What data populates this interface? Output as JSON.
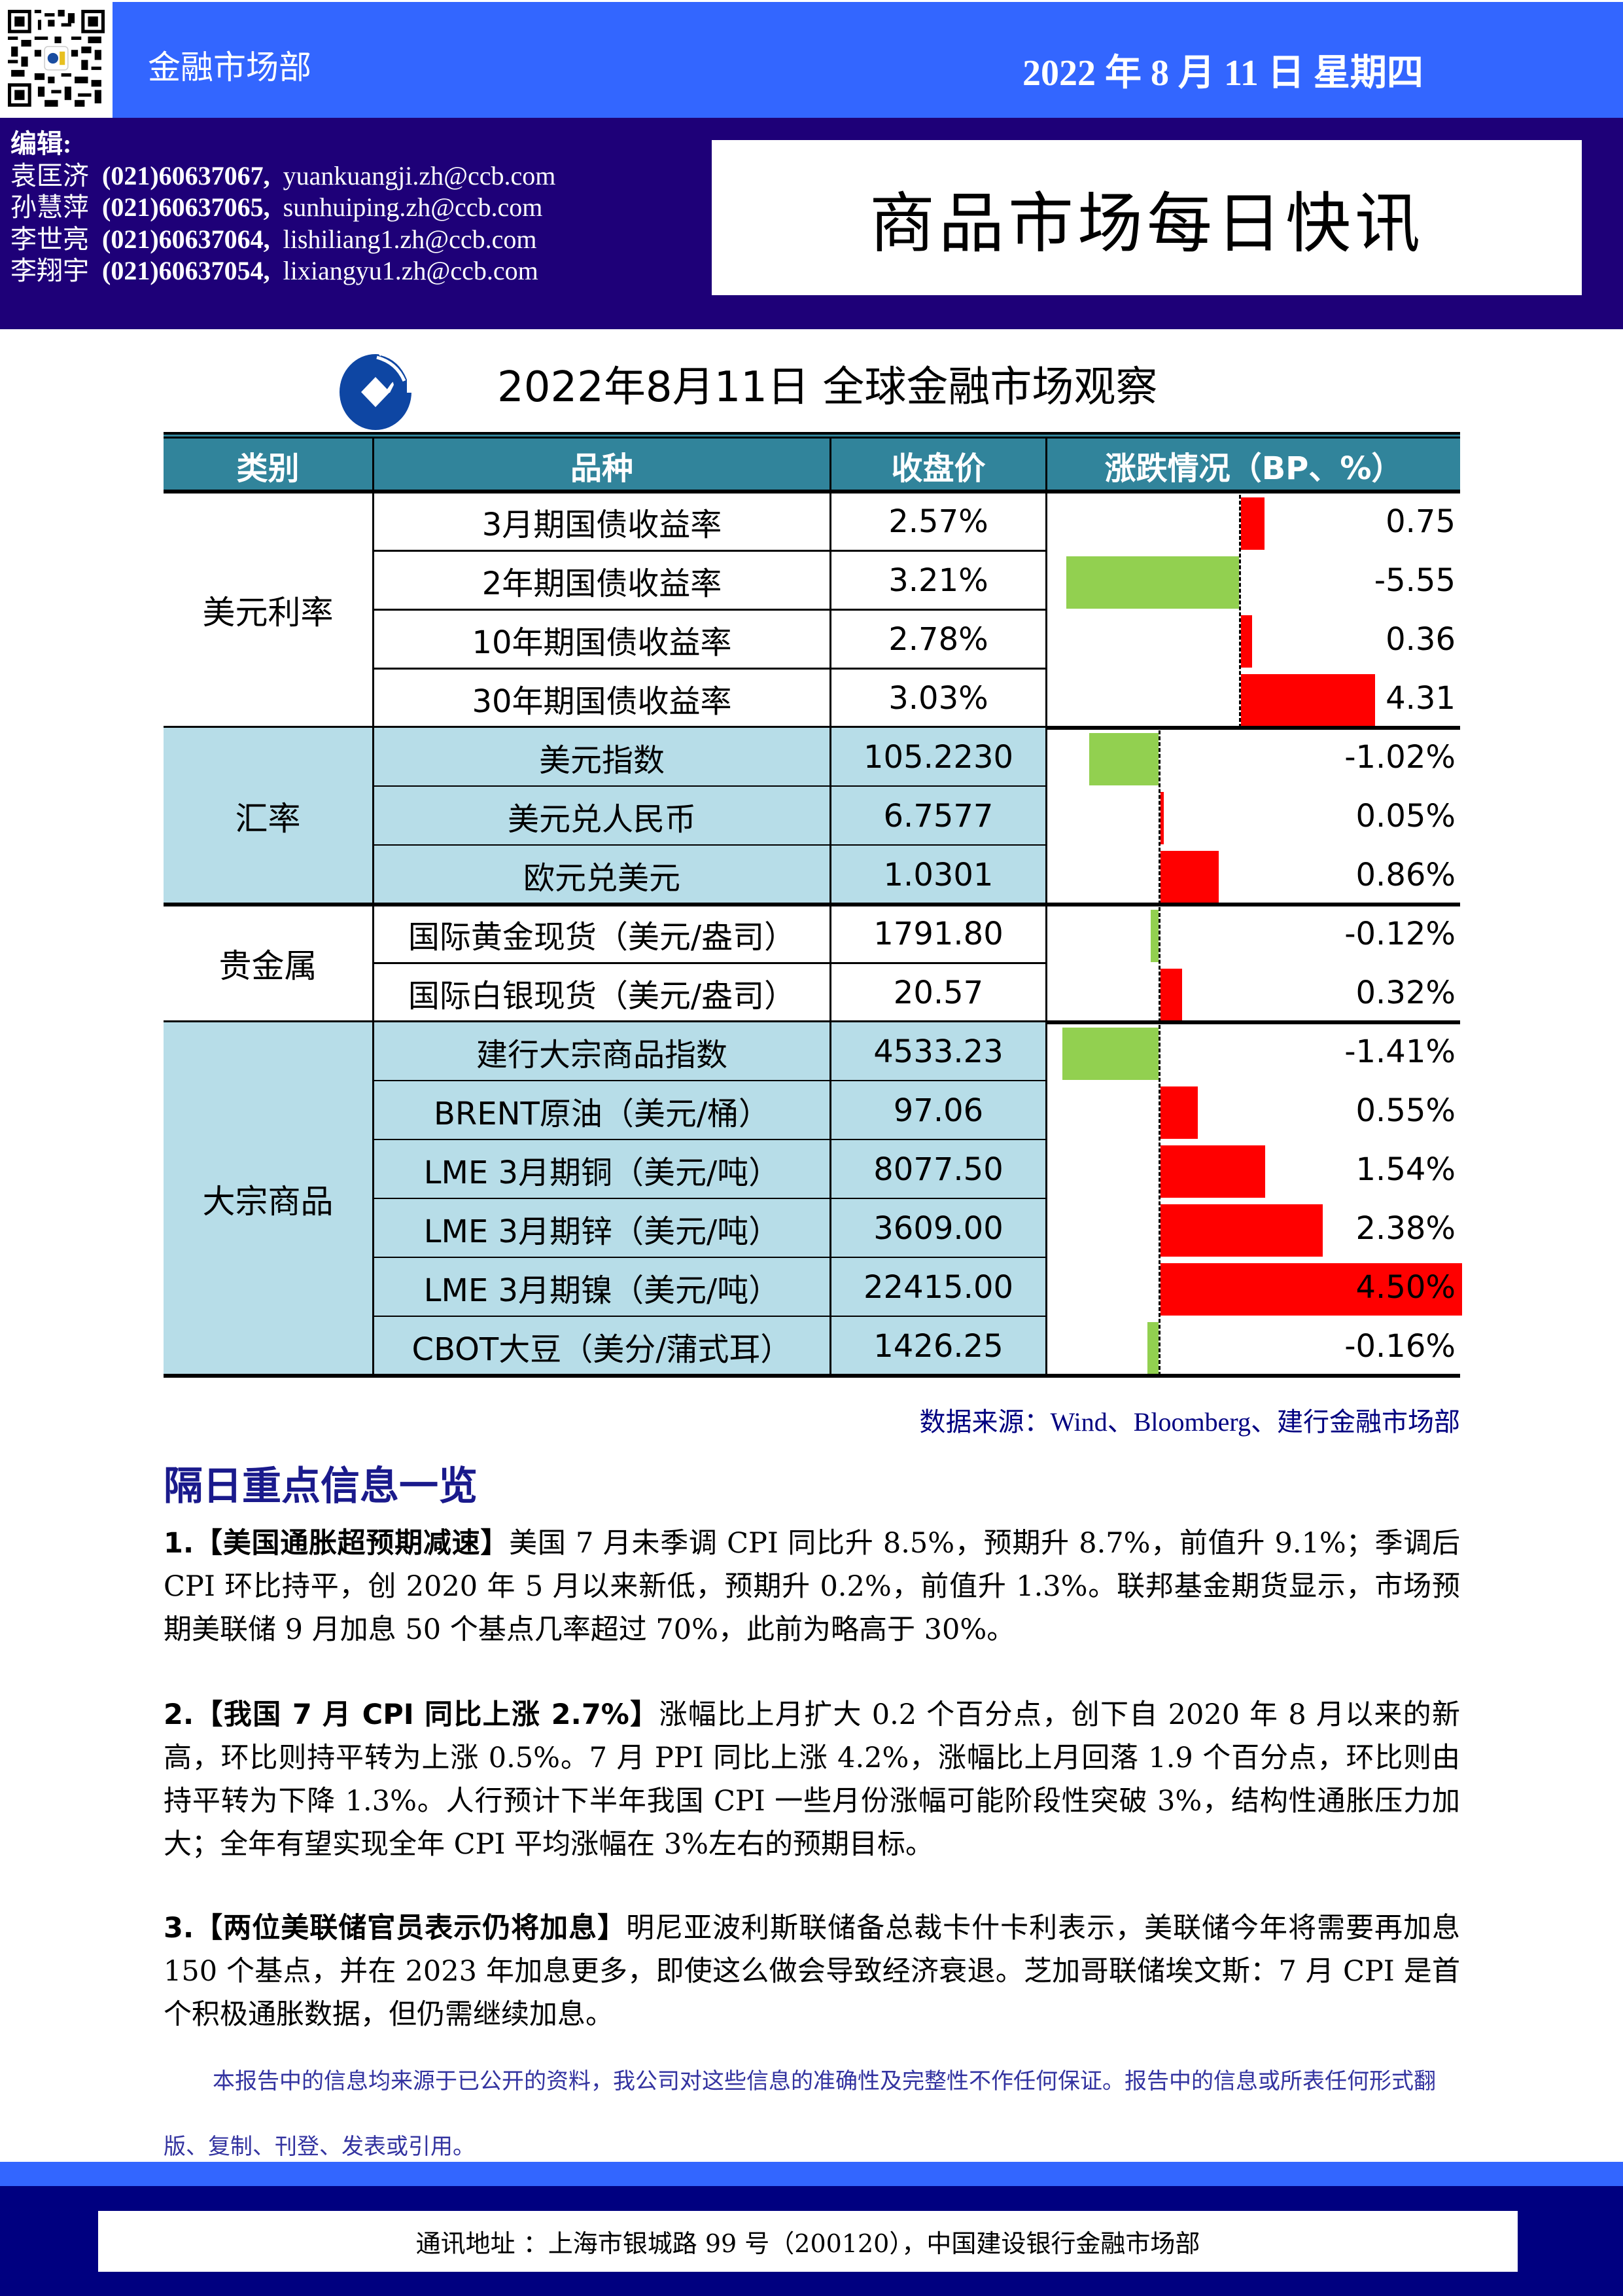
{
  "header": {
    "department": "金融市场部",
    "date": "2022 年 8 月 11 日  星期四",
    "editors_label": "编辑:",
    "editors": [
      {
        "name": "袁匡济",
        "phone": "(021)60637067,",
        "email": "yuankuangji.zh@ccb.com"
      },
      {
        "name": "孙慧萍",
        "phone": "(021)60637065,",
        "email": "sunhuiping.zh@ccb.com"
      },
      {
        "name": "李世亮",
        "phone": "(021)60637064,",
        "email": "lishiliang1.zh@ccb.com"
      },
      {
        "name": "李翔宇",
        "phone": "(021)60637054,",
        "email": "lixiangyu1.zh@ccb.com"
      }
    ],
    "report_title": "商品市场每日快讯",
    "qr_icon": "qr-code-icon"
  },
  "table": {
    "logo_icon": "ccb-logo-icon",
    "title": "2022年8月11日 全球金融市场观察",
    "columns": [
      "类别",
      "品种",
      "收盘价",
      "涨跌情况（BP、%）"
    ],
    "colors": {
      "header": "#31849B",
      "shaded_row": "#B7DDE8",
      "up": "#FF0000",
      "down": "#92D050"
    },
    "categories": [
      {
        "name": "美元利率",
        "shaded": false,
        "unit": "BP",
        "rows": [
          {
            "item": "3月期国债收益率",
            "close": "2.57%",
            "change": "0.75",
            "value": 0.75
          },
          {
            "item": "2年期国债收益率",
            "close": "3.21%",
            "change": "-5.55",
            "value": -5.55
          },
          {
            "item": "10年期国债收益率",
            "close": "2.78%",
            "change": "0.36",
            "value": 0.36
          },
          {
            "item": "30年期国债收益率",
            "close": "3.03%",
            "change": "4.31",
            "value": 4.31
          }
        ]
      },
      {
        "name": "汇率",
        "shaded": true,
        "unit": "%",
        "rows": [
          {
            "item": "美元指数",
            "close": "105.2230",
            "change": "-1.02%",
            "value": -1.02
          },
          {
            "item": "美元兑人民币",
            "close": "6.7577",
            "change": "0.05%",
            "value": 0.05
          },
          {
            "item": "欧元兑美元",
            "close": "1.0301",
            "change": "0.86%",
            "value": 0.86
          }
        ]
      },
      {
        "name": "贵金属",
        "shaded": false,
        "unit": "%",
        "rows": [
          {
            "item": "国际黄金现货（美元/盎司）",
            "close": "1791.80",
            "change": "-0.12%",
            "value": -0.12
          },
          {
            "item": "国际白银现货（美元/盎司）",
            "close": "20.57",
            "change": "0.32%",
            "value": 0.32
          }
        ]
      },
      {
        "name": "大宗商品",
        "shaded": true,
        "unit": "%",
        "rows": [
          {
            "item": "建行大宗商品指数",
            "close": "4533.23",
            "change": "-1.41%",
            "value": -1.41
          },
          {
            "item": "BRENT原油（美元/桶）",
            "close": "97.06",
            "change": "0.55%",
            "value": 0.55
          },
          {
            "item": "LME 3月期铜（美元/吨）",
            "close": "8077.50",
            "change": "1.54%",
            "value": 1.54
          },
          {
            "item": "LME 3月期锌（美元/吨）",
            "close": "3609.00",
            "change": "2.38%",
            "value": 2.38
          },
          {
            "item": "LME 3月期镍（美元/吨）",
            "close": "22415.00",
            "change": "4.50%",
            "value": 4.5
          },
          {
            "item": "CBOT大豆（美分/蒲式耳）",
            "close": "1426.25",
            "change": "-0.16%",
            "value": -0.16
          }
        ]
      }
    ],
    "source": "数据来源：Wind、Bloomberg、建行金融市场部"
  },
  "news": {
    "heading": "隔日重点信息一览",
    "items": [
      {
        "num": "1.",
        "headline": "【美国通胀超预期减速】",
        "body": "美国 7 月未季调 CPI 同比升 8.5%，预期升 8.7%，前值升 9.1%；季调后 CPI 环比持平，创 2020 年 5 月以来新低，预期升 0.2%，前值升 1.3%。联邦基金期货显示，市场预期美联储 9 月加息 50 个基点几率超过 70%，此前为略高于 30%。"
      },
      {
        "num": "2.",
        "headline": "【我国 7 月 CPI 同比上涨 2.7%】",
        "body": "涨幅比上月扩大 0.2 个百分点，创下自 2020 年 8 月以来的新高，环比则持平转为上涨 0.5%。7 月 PPI 同比上涨 4.2%，涨幅比上月回落 1.9 个百分点，环比则由持平转为下降 1.3%。人行预计下半年我国 CPI 一些月份涨幅可能阶段性突破 3%，结构性通胀压力加大；全年有望实现全年 CPI 平均涨幅在 3%左右的预期目标。"
      },
      {
        "num": "3.",
        "headline": "【两位美联储官员表示仍将加息】",
        "body": "明尼亚波利斯联储备总裁卡什卡利表示，美联储今年将需要再加息 150 个基点，并在 2023 年加息更多，即使这么做会导致经济衰退。芝加哥联储埃文斯：7 月 CPI 是首个积极通胀数据，但仍需继续加息。"
      }
    ],
    "disclaimer": "本报告中的信息均来源于已公开的资料，我公司对这些信息的准确性及完整性不作任何保证。报告中的信息或所表任何形式翻版、复制、刊登、发表或引用。"
  },
  "footer": {
    "address": "通讯地址 ：上海市银城路 99 号（200120），中国建设银行金融市场部"
  }
}
